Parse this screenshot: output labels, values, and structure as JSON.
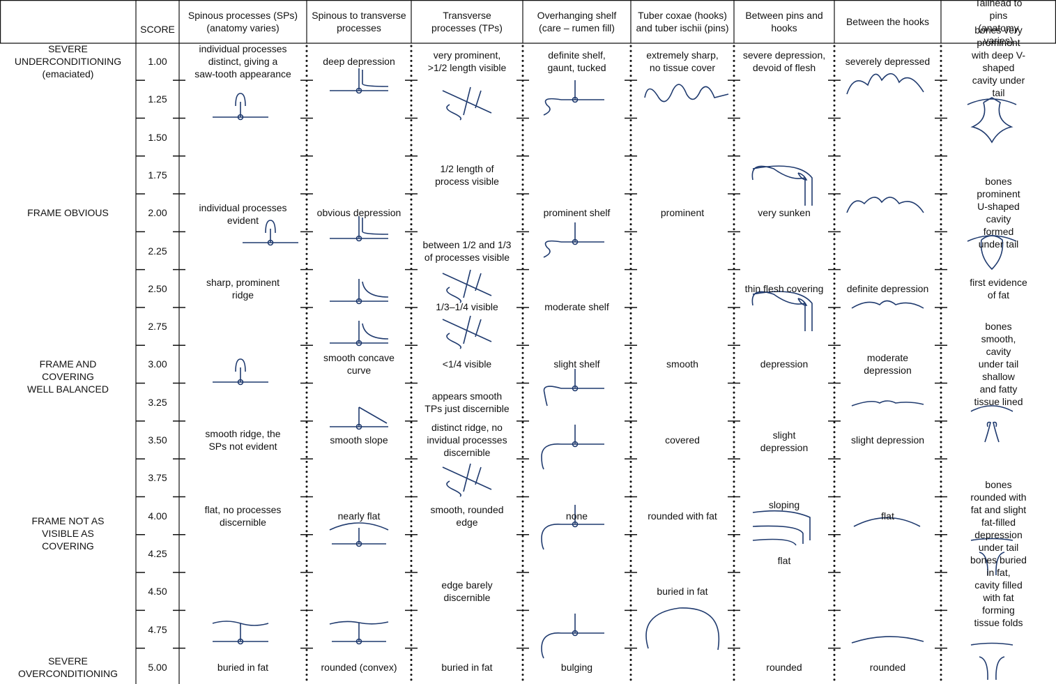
{
  "header": {
    "score": "SCORE",
    "columns": [
      "Spinous processes (SPs)\n(anatomy varies)",
      "Spinous to transverse\nprocesses",
      "Transverse\nprocesses (TPs)",
      "Overhanging shelf\n(care – rumen fill)",
      "Tuber coxae (hooks)\nand tuber ischii (pins)",
      "Between pins and\nhooks",
      "Between the hooks",
      "Tailhead to pins\n(anatomy varies)"
    ]
  },
  "rows": [
    {
      "score": "1.00",
      "label": "SEVERE\nUNDERCONDITIONING\n(emaciated)",
      "cells": [
        "individual processes\ndistinct, giving a\nsaw-tooth appearance",
        "deep depression",
        "very prominent,\n>1/2 length visible",
        "definite shelf,\ngaunt, tucked",
        "extremely sharp,\nno tissue cover",
        "severe depression,\ndevoid of flesh",
        "severely depressed",
        "bones very prominent\nwith deep V-shaped\ncavity under tail"
      ]
    },
    {
      "score": "1.25",
      "label": null,
      "cells": [
        null,
        null,
        null,
        null,
        null,
        null,
        null,
        null
      ]
    },
    {
      "score": "1.50",
      "label": null,
      "cells": [
        null,
        null,
        null,
        null,
        null,
        null,
        null,
        null
      ]
    },
    {
      "score": "1.75",
      "label": null,
      "cells": [
        null,
        null,
        "1/2 length of\nprocess visible",
        null,
        null,
        null,
        null,
        null
      ]
    },
    {
      "score": "2.00",
      "label": "FRAME OBVIOUS",
      "cells": [
        "individual processes\nevident",
        "obvious depression",
        null,
        "prominent shelf",
        "prominent",
        "very sunken",
        null,
        "bones prominent\nU-shaped cavity\nformed under tail"
      ]
    },
    {
      "score": "2.25",
      "label": null,
      "cells": [
        null,
        null,
        "between 1/2 and 1/3\nof processes visible",
        null,
        null,
        null,
        null,
        null
      ]
    },
    {
      "score": "2.50",
      "label": null,
      "cells": [
        "sharp, prominent\nridge",
        null,
        null,
        null,
        null,
        "thin flesh covering",
        "definite depression",
        "first evidence\nof fat"
      ]
    },
    {
      "score": "2.75",
      "label": null,
      "cells": [
        null,
        null,
        "1/3–1/4 visible",
        "moderate shelf",
        null,
        null,
        null,
        null
      ]
    },
    {
      "score": "3.00",
      "label": "FRAME AND\nCOVERING\nWELL BALANCED",
      "cells": [
        null,
        "smooth concave\ncurve",
        "<1/4 visible",
        "slight shelf",
        "smooth",
        "depression",
        "moderate\ndepression",
        "bones smooth, cavity\nunder tail shallow\nand fatty tissue lined"
      ]
    },
    {
      "score": "3.25",
      "label": null,
      "cells": [
        null,
        null,
        "appears smooth\nTPs just discernible",
        null,
        null,
        null,
        null,
        null
      ]
    },
    {
      "score": "3.50",
      "label": null,
      "cells": [
        "smooth ridge, the\nSPs not evident",
        "smooth slope",
        "distinct ridge, no\ninvidual processes\ndiscernible",
        null,
        "covered",
        "slight\ndepression",
        "slight depression",
        null
      ]
    },
    {
      "score": "3.75",
      "label": null,
      "cells": [
        null,
        null,
        null,
        null,
        null,
        null,
        null,
        null
      ]
    },
    {
      "score": "4.00",
      "label": "FRAME NOT AS\nVISIBLE AS\nCOVERING",
      "cells": [
        "flat, no processes\ndiscernible",
        "nearly flat",
        "smooth, rounded\nedge",
        "none",
        "rounded with fat",
        "sloping",
        "flat",
        "bones rounded with\nfat and slight fat-filled\ndepression under tail"
      ]
    },
    {
      "score": "4.25",
      "label": null,
      "cells": [
        null,
        null,
        null,
        null,
        null,
        "flat",
        null,
        null
      ]
    },
    {
      "score": "4.50",
      "label": null,
      "cells": [
        null,
        null,
        "edge barely\ndiscernible",
        null,
        "buried in fat",
        null,
        null,
        "bones buried in fat,\ncavity filled with fat\nforming tissue folds"
      ]
    },
    {
      "score": "4.75",
      "label": null,
      "cells": [
        null,
        null,
        null,
        null,
        null,
        null,
        null,
        null
      ]
    },
    {
      "score": "5.00",
      "label": "SEVERE\nOVERCONDITIONING",
      "cells": [
        "buried in fat",
        "rounded (convex)",
        "buried in fat",
        "bulging",
        null,
        "rounded",
        "rounded",
        null
      ]
    }
  ]
}
